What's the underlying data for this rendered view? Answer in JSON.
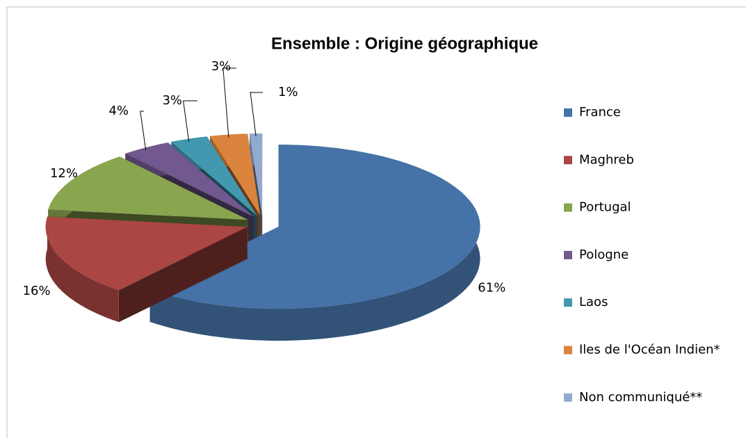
{
  "chart_data": {
    "type": "pie3d",
    "title": "Ensemble : Origine géographique",
    "categories": [
      "France",
      "Maghreb",
      "Portugal",
      "Pologne",
      "Laos",
      "Iles de l'Océan Indien*",
      "Non communiqué**"
    ],
    "values": [
      61,
      16,
      12,
      4,
      3,
      3,
      1
    ],
    "value_labels": [
      "61%",
      "16%",
      "12%",
      "4%",
      "3%",
      "3%",
      "1%"
    ],
    "colors": [
      "#4572a7",
      "#aa4643",
      "#89a54e",
      "#71588f",
      "#4198af",
      "#db843d",
      "#93a9cf"
    ],
    "legend": "right"
  }
}
